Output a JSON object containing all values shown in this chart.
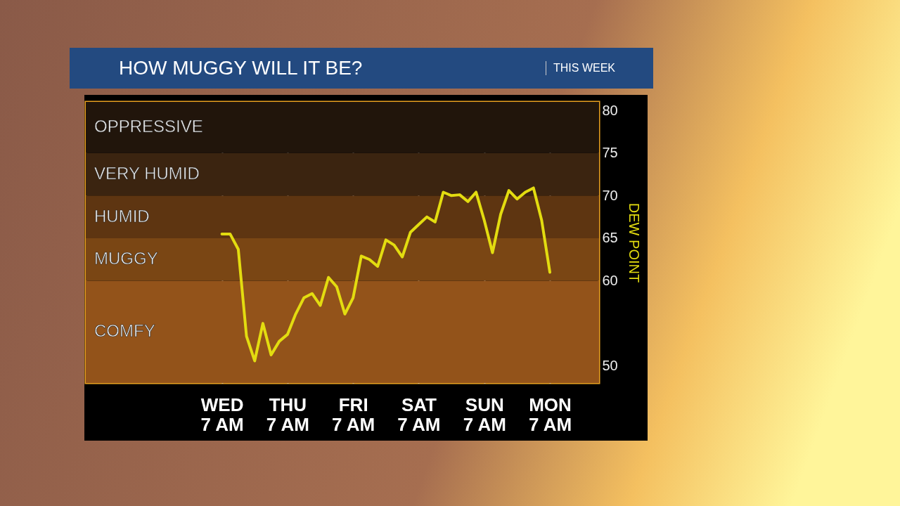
{
  "chart_data": {
    "type": "line",
    "title": "HOW MUGGY WILL IT BE?",
    "subtitle": "THIS WEEK",
    "ylabel": "DEW POINT",
    "categories": [
      "WED 7 AM",
      null,
      null,
      null,
      null,
      null,
      null,
      null,
      "THU 7 AM",
      null,
      null,
      null,
      null,
      null,
      null,
      null,
      "FRI 7 AM",
      null,
      null,
      null,
      null,
      null,
      null,
      null,
      "SAT 7 AM",
      null,
      null,
      null,
      null,
      null,
      null,
      null,
      "SUN 7 AM",
      null,
      null,
      null,
      null,
      null,
      null,
      null,
      "MON 7 AM"
    ],
    "ylim": [
      48,
      81
    ],
    "yticks": [
      50,
      60,
      65,
      70,
      75,
      80
    ],
    "grid": "x",
    "marker": "none",
    "line_style": "solid",
    "bands": [
      {
        "axis": "y",
        "from": 48,
        "to": 60,
        "label": "COMFY",
        "color": "#93531a"
      },
      {
        "axis": "y",
        "from": 60,
        "to": 65,
        "label": "MUGGY",
        "color": "#7a4614"
      },
      {
        "axis": "y",
        "from": 65,
        "to": 70,
        "label": "HUMID",
        "color": "#5e3511"
      },
      {
        "axis": "y",
        "from": 70,
        "to": 75,
        "label": "VERY HUMID",
        "color": "#3b2410"
      },
      {
        "axis": "y",
        "from": 75,
        "to": 81,
        "label": "OPPRESSIVE",
        "color": "#21150b"
      }
    ],
    "series": [
      {
        "color": "#e3dc10",
        "values": [
          65.5,
          65.5,
          63.7,
          53.5,
          50.6,
          55,
          51.3,
          52.9,
          53.7,
          56.1,
          58,
          58.5,
          57.1,
          60.4,
          59.3,
          56.1,
          58,
          62.9,
          62.5,
          61.7,
          64.8,
          64.2,
          62.8,
          65.7,
          66.6,
          67.5,
          66.9,
          70.4,
          70,
          70.1,
          69.3,
          70.4,
          67.1,
          63.3,
          67.8,
          70.6,
          69.6,
          70.4,
          70.9,
          67.1,
          61
        ]
      }
    ]
  }
}
